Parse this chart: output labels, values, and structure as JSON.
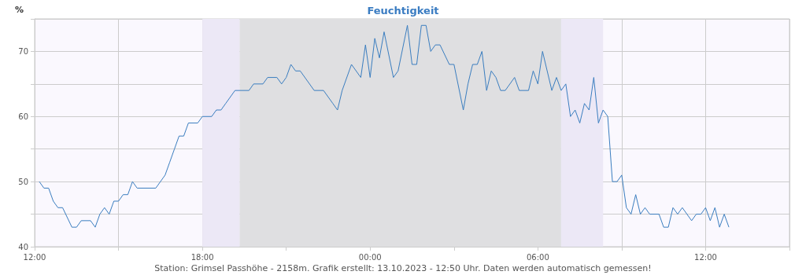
{
  "chart_data": {
    "type": "line",
    "title": "Feuchtigkeit",
    "ylabel": "%",
    "annotations": [
      "Station: Grimsel Passhöhe - 2158m. Grafik erstellt: 13.10.2023 - 12:50 Uhr. Daten werden automatisch gemessen!"
    ],
    "xlim": [
      "2023-10-12T12:00",
      "2023-10-13T15:00"
    ],
    "xticks": [
      {
        "value": "2023-10-12T12:00",
        "label": "12:00"
      },
      {
        "value": "2023-10-12T15:00",
        "label": null
      },
      {
        "value": "2023-10-12T18:00",
        "label": "18:00"
      },
      {
        "value": "2023-10-12T21:00",
        "label": null
      },
      {
        "value": "2023-10-13T00:00",
        "label": "00:00"
      },
      {
        "value": "2023-10-13T03:00",
        "label": null
      },
      {
        "value": "2023-10-13T06:00",
        "label": "06:00"
      },
      {
        "value": "2023-10-13T09:00",
        "label": null
      },
      {
        "value": "2023-10-13T12:00",
        "label": "12:00"
      },
      {
        "value": "2023-10-13T15:00",
        "label": null
      }
    ],
    "ylim": [
      40,
      75
    ],
    "yticks": [
      40,
      {
        "value": 45,
        "label": null
      },
      50,
      {
        "value": 55,
        "label": null
      },
      60,
      {
        "value": 65,
        "label": null
      },
      70,
      {
        "value": 75,
        "label": null
      }
    ],
    "grid": true,
    "marker": "none",
    "line_style": "solid",
    "bands": [
      {
        "axis": "x",
        "from": "2023-10-12T18:00",
        "to": "2023-10-12T19:20",
        "color": "#ece8f6"
      },
      {
        "axis": "x",
        "from": "2023-10-12T19:20",
        "to": "2023-10-13T06:50",
        "color": "#dfdfe1"
      },
      {
        "axis": "x",
        "from": "2023-10-13T06:50",
        "to": "2023-10-13T08:20",
        "color": "#ece8f6"
      }
    ],
    "series": [
      {
        "color": "#3a7dbf",
        "x": [
          "2023-10-12T12:10",
          "2023-10-12T12:20",
          "2023-10-12T12:30",
          "2023-10-12T12:40",
          "2023-10-12T12:50",
          "2023-10-12T13:00",
          "2023-10-12T13:20",
          "2023-10-12T13:30",
          "2023-10-12T13:40",
          "2023-10-12T14:00",
          "2023-10-12T14:10",
          "2023-10-12T14:20",
          "2023-10-12T14:30",
          "2023-10-12T14:40",
          "2023-10-12T14:50",
          "2023-10-12T15:00",
          "2023-10-12T15:10",
          "2023-10-12T15:20",
          "2023-10-12T15:30",
          "2023-10-12T15:40",
          "2023-10-12T16:20",
          "2023-10-12T16:30",
          "2023-10-12T16:40",
          "2023-10-12T16:50",
          "2023-10-12T17:00",
          "2023-10-12T17:10",
          "2023-10-12T17:20",
          "2023-10-12T17:30",
          "2023-10-12T17:50",
          "2023-10-12T18:00",
          "2023-10-12T18:20",
          "2023-10-12T18:30",
          "2023-10-12T18:40",
          "2023-10-12T18:50",
          "2023-10-12T19:10",
          "2023-10-12T19:40",
          "2023-10-12T19:50",
          "2023-10-12T20:10",
          "2023-10-12T20:20",
          "2023-10-12T20:40",
          "2023-10-12T20:50",
          "2023-10-12T21:00",
          "2023-10-12T21:10",
          "2023-10-12T21:20",
          "2023-10-12T21:30",
          "2023-10-12T22:00",
          "2023-10-12T22:20",
          "2023-10-12T22:40",
          "2023-10-12T22:50",
          "2023-10-12T23:00",
          "2023-10-12T23:20",
          "2023-10-12T23:40",
          "2023-10-12T23:50",
          "2023-10-13T00:00",
          "2023-10-13T00:10",
          "2023-10-13T00:20",
          "2023-10-13T00:30",
          "2023-10-13T00:50",
          "2023-10-13T01:00",
          "2023-10-13T01:20",
          "2023-10-13T01:30",
          "2023-10-13T01:40",
          "2023-10-13T01:50",
          "2023-10-13T02:00",
          "2023-10-13T02:10",
          "2023-10-13T02:20",
          "2023-10-13T02:30",
          "2023-10-13T02:50",
          "2023-10-13T03:00",
          "2023-10-13T03:20",
          "2023-10-13T03:30",
          "2023-10-13T03:40",
          "2023-10-13T03:50",
          "2023-10-13T04:00",
          "2023-10-13T04:10",
          "2023-10-13T04:20",
          "2023-10-13T04:30",
          "2023-10-13T04:40",
          "2023-10-13T04:50",
          "2023-10-13T05:10",
          "2023-10-13T05:20",
          "2023-10-13T05:40",
          "2023-10-13T05:50",
          "2023-10-13T06:00",
          "2023-10-13T06:10",
          "2023-10-13T06:30",
          "2023-10-13T06:40",
          "2023-10-13T06:50",
          "2023-10-13T07:00",
          "2023-10-13T07:10",
          "2023-10-13T07:20",
          "2023-10-13T07:30",
          "2023-10-13T07:40",
          "2023-10-13T07:50",
          "2023-10-13T08:00",
          "2023-10-13T08:10",
          "2023-10-13T08:20",
          "2023-10-13T08:30",
          "2023-10-13T08:40",
          "2023-10-13T08:50",
          "2023-10-13T09:00",
          "2023-10-13T09:10",
          "2023-10-13T09:20",
          "2023-10-13T09:30",
          "2023-10-13T09:40",
          "2023-10-13T09:50",
          "2023-10-13T10:00",
          "2023-10-13T10:20",
          "2023-10-13T10:30",
          "2023-10-13T10:40",
          "2023-10-13T10:50",
          "2023-10-13T11:00",
          "2023-10-13T11:10",
          "2023-10-13T11:30",
          "2023-10-13T11:40",
          "2023-10-13T11:50",
          "2023-10-13T12:00",
          "2023-10-13T12:10",
          "2023-10-13T12:20",
          "2023-10-13T12:30",
          "2023-10-13T12:40",
          "2023-10-13T12:50"
        ],
        "values": [
          50,
          49,
          49,
          47,
          46,
          46,
          43,
          43,
          44,
          44,
          43,
          45,
          46,
          45,
          47,
          47,
          48,
          48,
          50,
          49,
          49,
          50,
          51,
          53,
          55,
          57,
          57,
          59,
          59,
          60,
          60,
          61,
          61,
          62,
          64,
          64,
          65,
          65,
          66,
          66,
          65,
          66,
          68,
          67,
          67,
          64,
          64,
          62,
          61,
          64,
          68,
          66,
          71,
          66,
          72,
          69,
          73,
          66,
          67,
          74,
          68,
          68,
          74,
          74,
          70,
          71,
          71,
          68,
          68,
          61,
          65,
          68,
          68,
          70,
          64,
          67,
          66,
          64,
          64,
          66,
          64,
          64,
          67,
          65,
          70,
          64,
          66,
          64,
          65,
          60,
          61,
          59,
          62,
          61,
          66,
          59,
          61,
          60,
          50,
          50,
          51,
          46,
          45,
          48,
          45,
          46,
          45,
          45,
          43,
          43,
          46,
          45,
          46,
          44,
          45,
          45,
          46,
          44,
          46,
          43,
          45,
          43
        ]
      }
    ]
  }
}
